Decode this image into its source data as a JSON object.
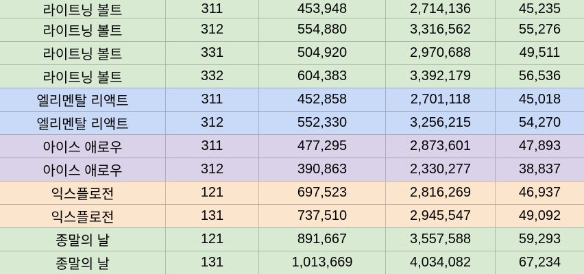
{
  "table": {
    "column_semantics": [
      "skill-name",
      "code",
      "value-1",
      "value-2",
      "value-3"
    ],
    "colors": {
      "green": "#d9ead3",
      "blue": "#c9daf8",
      "purple": "#d9d2e9",
      "orange": "#fce5cd",
      "gridline": "rgba(0,0,0,0.22)",
      "text": "#000000"
    },
    "rows": [
      {
        "color": "green",
        "cells": [
          "라이트닝 볼트",
          "311",
          "453,948",
          "2,714,136",
          "45,235"
        ]
      },
      {
        "color": "green",
        "cells": [
          "라이트닝 볼트",
          "312",
          "554,880",
          "3,316,562",
          "55,276"
        ]
      },
      {
        "color": "green",
        "cells": [
          "라이트닝 볼트",
          "331",
          "504,920",
          "2,970,688",
          "49,511"
        ]
      },
      {
        "color": "green",
        "cells": [
          "라이트닝 볼트",
          "332",
          "604,383",
          "3,392,179",
          "56,536"
        ]
      },
      {
        "color": "blue",
        "cells": [
          "엘리멘탈 리액트",
          "311",
          "452,858",
          "2,701,118",
          "45,018"
        ]
      },
      {
        "color": "blue",
        "cells": [
          "엘리멘탈 리액트",
          "312",
          "552,330",
          "3,256,215",
          "54,270"
        ]
      },
      {
        "color": "purple",
        "cells": [
          "아이스 애로우",
          "311",
          "477,295",
          "2,873,601",
          "47,893"
        ]
      },
      {
        "color": "purple",
        "cells": [
          "아이스 애로우",
          "312",
          "390,863",
          "2,330,277",
          "38,837"
        ]
      },
      {
        "color": "orange",
        "cells": [
          "익스플로전",
          "121",
          "697,523",
          "2,816,269",
          "46,937"
        ]
      },
      {
        "color": "orange",
        "cells": [
          "익스플로전",
          "131",
          "737,510",
          "2,945,547",
          "49,092"
        ]
      },
      {
        "color": "green",
        "cells": [
          "종말의 날",
          "121",
          "891,667",
          "3,557,588",
          "59,293"
        ]
      },
      {
        "color": "green",
        "cells": [
          "종말의 날",
          "131",
          "1,013,669",
          "4,034,082",
          "67,234"
        ]
      }
    ]
  }
}
